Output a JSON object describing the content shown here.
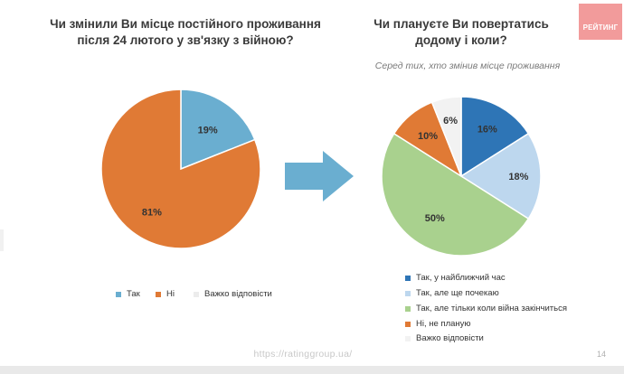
{
  "left_title_lines": [
    "Чи змінили Ви місце постійного проживання",
    "після  24 лютого у зв'язку з війною?"
  ],
  "right_title_lines": [
    "Чи плануєте Ви повертатись",
    "додому і коли?"
  ],
  "right_subtitle": "Серед тих, хто змінив місце проживання",
  "logo_text": "РЕЙТИНГ",
  "footer_link": "https://ratinggroup.ua/",
  "page_number": "14",
  "colors": {
    "blue_light": "#6aaed0",
    "orange": "#e07a35",
    "grey_light": "#ececec",
    "blue_dark": "#2e75b6",
    "blue_pale": "#bdd7ee",
    "green": "#a9d18e",
    "white_gray": "#f2f2f2",
    "arrow": "#6aaed0"
  },
  "chart_data": [
    {
      "type": "pie",
      "title": "Чи змінили Ви місце постійного проживання після  24 лютого у зв'язку з війною?",
      "slices": [
        {
          "label": "Так",
          "value": 19,
          "display": "19%",
          "color": "#6aaed0"
        },
        {
          "label": "Ні",
          "value": 81,
          "display": "81%",
          "color": "#e07a35"
        },
        {
          "label": "Важко відповісти",
          "value": 0,
          "display": "",
          "color": "#ececec"
        }
      ],
      "legend_position": "bottom"
    },
    {
      "type": "pie",
      "title": "Чи плануєте Ви повертатись додому і коли?",
      "subtitle": "Серед тих, хто змінив місце проживання",
      "slices": [
        {
          "label": "Так, у найближчий час",
          "value": 16,
          "display": "16%",
          "color": "#2e75b6"
        },
        {
          "label": "Так, але ще почекаю",
          "value": 18,
          "display": "18%",
          "color": "#bdd7ee"
        },
        {
          "label": "Так, але тільки коли війна закінчиться",
          "value": 50,
          "display": "50%",
          "color": "#a9d18e"
        },
        {
          "label": "Ні, не планую",
          "value": 10,
          "display": "10%",
          "color": "#e07a35"
        },
        {
          "label": "Важко відповісти",
          "value": 6,
          "display": "6%",
          "color": "#f2f2f2"
        }
      ],
      "legend_position": "bottom"
    }
  ]
}
